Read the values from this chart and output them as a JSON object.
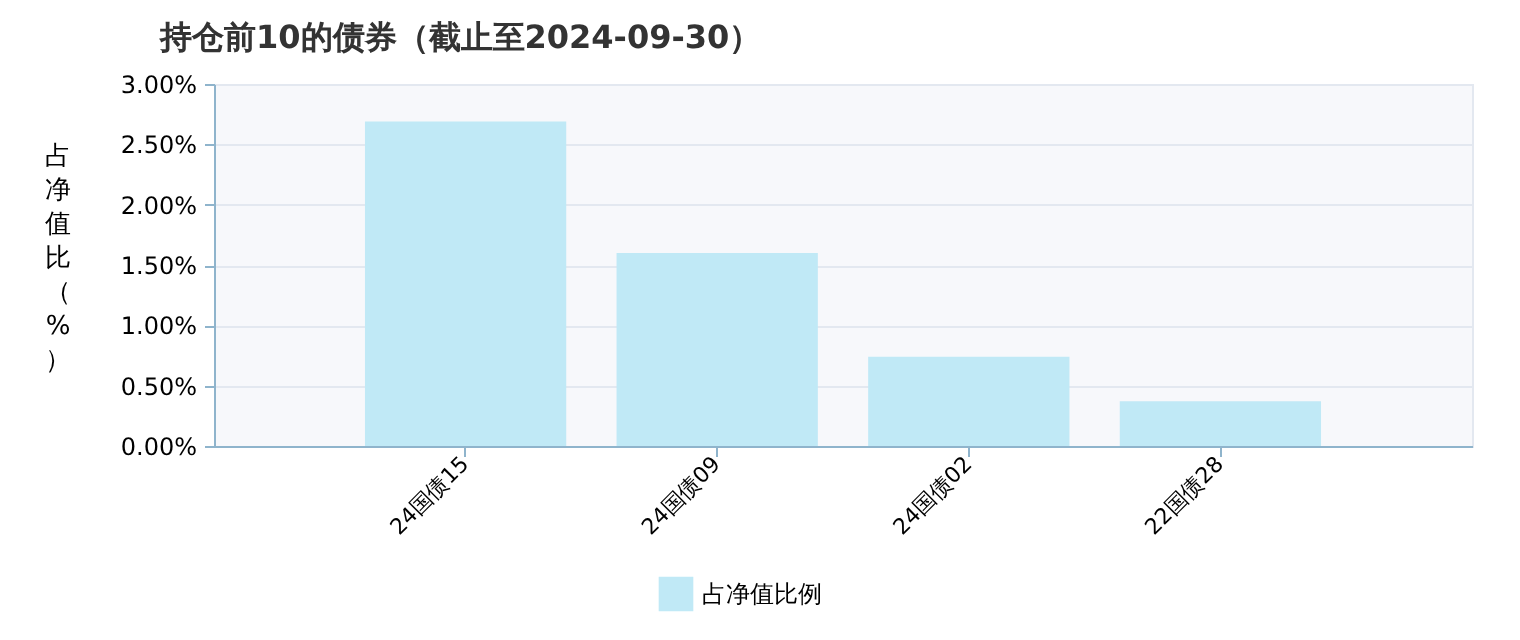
{
  "chart_data": {
    "type": "bar",
    "title": "持仓前10的债券（截止至2024-09-30）",
    "ylabel": "占净值比（%）",
    "categories": [
      "24国债15",
      "24国债09",
      "24国债02",
      "22国债28"
    ],
    "series": [
      {
        "name": "占净值比例",
        "color": "#c0e9f6",
        "values": [
          2.69,
          1.6,
          0.74,
          0.37
        ]
      }
    ],
    "ylim": [
      0,
      3
    ],
    "yticks": [
      {
        "value": 0,
        "label": "0.00%"
      },
      {
        "value": 0.5,
        "label": "0.50%"
      },
      {
        "value": 1,
        "label": "1.00%"
      },
      {
        "value": 1.5,
        "label": "1.50%"
      },
      {
        "value": 2,
        "label": "2.00%"
      },
      {
        "value": 2.5,
        "label": "2.50%"
      },
      {
        "value": 3,
        "label": "3.00%"
      }
    ],
    "grid": "y",
    "legend": "bottom"
  }
}
